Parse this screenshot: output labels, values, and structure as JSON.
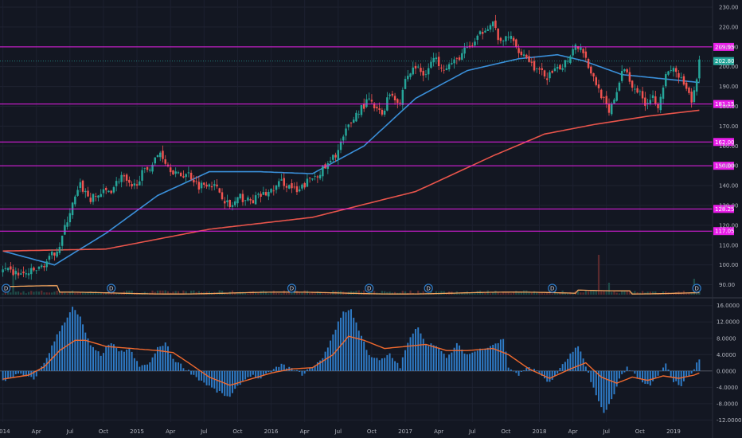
{
  "chart_data": [
    {
      "type": "candlestick",
      "title": "",
      "xlabel": "",
      "ylabel": "",
      "ylim": [
        85,
        232
      ],
      "yticks": [
        "230.00",
        "220.00",
        "210.00",
        "200.00",
        "190.00",
        "180.00",
        "170.00",
        "160.00",
        "150.00",
        "140.00",
        "130.00",
        "120.00",
        "110.00",
        "100.00",
        "90.00"
      ],
      "ytick_values": [
        230,
        220,
        210,
        200,
        190,
        180,
        170,
        160,
        150,
        140,
        130,
        120,
        110,
        100,
        90
      ],
      "x_labels": [
        "2014",
        "Apr",
        "Jul",
        "Oct",
        "2015",
        "Apr",
        "Jul",
        "Oct",
        "2016",
        "Apr",
        "Jul",
        "Oct",
        "2017",
        "Apr",
        "Jul",
        "Oct",
        "2018",
        "Apr",
        "Jul",
        "Oct",
        "2019"
      ],
      "x_label_positions": [
        0,
        13,
        26,
        39,
        52,
        65,
        78,
        91,
        104,
        117,
        130,
        143,
        156,
        169,
        182,
        195,
        208,
        221,
        234,
        247,
        260
      ],
      "n_bars": 271,
      "close_keypoints": [
        [
          0,
          97
        ],
        [
          8,
          95
        ],
        [
          14,
          98
        ],
        [
          18,
          103
        ],
        [
          22,
          110
        ],
        [
          26,
          127
        ],
        [
          30,
          140
        ],
        [
          34,
          133
        ],
        [
          38,
          136
        ],
        [
          42,
          138
        ],
        [
          46,
          145
        ],
        [
          50,
          138
        ],
        [
          54,
          146
        ],
        [
          58,
          151
        ],
        [
          61,
          157
        ],
        [
          64,
          150
        ],
        [
          68,
          145
        ],
        [
          72,
          146
        ],
        [
          76,
          140
        ],
        [
          80,
          142
        ],
        [
          84,
          137
        ],
        [
          88,
          129
        ],
        [
          92,
          134
        ],
        [
          96,
          132
        ],
        [
          100,
          135
        ],
        [
          104,
          137
        ],
        [
          108,
          142
        ],
        [
          112,
          139
        ],
        [
          114,
          136
        ],
        [
          118,
          142
        ],
        [
          122,
          146
        ],
        [
          126,
          150
        ],
        [
          130,
          158
        ],
        [
          134,
          170
        ],
        [
          138,
          178
        ],
        [
          142,
          183
        ],
        [
          144,
          179
        ],
        [
          147,
          176
        ],
        [
          150,
          187
        ],
        [
          154,
          182
        ],
        [
          156,
          194
        ],
        [
          160,
          200
        ],
        [
          163,
          196
        ],
        [
          167,
          204
        ],
        [
          171,
          200
        ],
        [
          175,
          202
        ],
        [
          179,
          208
        ],
        [
          183,
          212
        ],
        [
          187,
          220
        ],
        [
          190,
          222
        ],
        [
          193,
          211
        ],
        [
          196,
          216
        ],
        [
          199,
          210
        ],
        [
          203,
          205
        ],
        [
          207,
          198
        ],
        [
          211,
          195
        ],
        [
          215,
          198
        ],
        [
          219,
          204
        ],
        [
          222,
          212
        ],
        [
          225,
          208
        ],
        [
          228,
          197
        ],
        [
          232,
          186
        ],
        [
          235,
          176
        ],
        [
          238,
          188
        ],
        [
          241,
          200
        ],
        [
          243,
          193
        ],
        [
          246,
          188
        ],
        [
          249,
          182
        ],
        [
          252,
          185
        ],
        [
          254,
          181
        ],
        [
          257,
          195
        ],
        [
          260,
          199
        ],
        [
          263,
          193
        ],
        [
          265,
          188
        ],
        [
          267,
          182
        ],
        [
          269,
          193
        ],
        [
          270,
          205
        ]
      ],
      "bull_color": "#26a69a",
      "bear_color": "#ef5350",
      "moving_averages": [
        {
          "period": 50,
          "color": "#3a8fd9",
          "keypoints": [
            [
              0,
              107
            ],
            [
              20,
              100
            ],
            [
              40,
              116
            ],
            [
              60,
              135
            ],
            [
              80,
              147
            ],
            [
              100,
              147
            ],
            [
              120,
              146
            ],
            [
              140,
              160
            ],
            [
              160,
              184
            ],
            [
              180,
              198
            ],
            [
              200,
              204
            ],
            [
              215,
              206
            ],
            [
              225,
              203
            ],
            [
              240,
              196
            ],
            [
              255,
              194
            ],
            [
              270,
              192
            ]
          ]
        },
        {
          "period": 200,
          "color": "#e8544b",
          "keypoints": [
            [
              0,
              107
            ],
            [
              40,
              108
            ],
            [
              80,
              118
            ],
            [
              120,
              124
            ],
            [
              160,
              137
            ],
            [
              190,
              155
            ],
            [
              210,
              166
            ],
            [
              230,
              171
            ],
            [
              250,
              175
            ],
            [
              270,
              178
            ]
          ]
        }
      ],
      "price_levels": [
        {
          "value": 209.95,
          "label": "209.95"
        },
        {
          "value": 181.15,
          "label": "181.15"
        },
        {
          "value": 162.0,
          "label": "162.00"
        },
        {
          "value": 150.0,
          "label": "150.00"
        },
        {
          "value": 128.25,
          "label": "128.25"
        },
        {
          "value": 117.05,
          "label": "117.05"
        }
      ],
      "level_color": "#e91ee9",
      "current_price": {
        "value": 202.8,
        "label": "202.80",
        "color": "#26a69a"
      },
      "volume": {
        "baseline_color": "#f0a35e",
        "spike_bars": [
          [
            4,
            35
          ],
          [
            231,
            50
          ],
          [
            235,
            15
          ],
          [
            268,
            20
          ]
        ]
      },
      "dividend_markers": {
        "label": "D",
        "bars": [
          0,
          42,
          112,
          142,
          165,
          213,
          269
        ]
      }
    },
    {
      "type": "bar",
      "name": "momentum oscillator",
      "ylim": [
        -12.5,
        17.5
      ],
      "yticks": [
        "16.0000",
        "12.0000",
        "8.0000",
        "4.0000",
        "0.0000",
        "-4.0000",
        "-8.0000",
        "-12.0000"
      ],
      "ytick_values": [
        16,
        12,
        8,
        4,
        0,
        -4,
        -8,
        -12
      ],
      "bar_color": "#2f7cc8",
      "zero_line_color": "#5a5e69",
      "keypoints": [
        [
          0,
          -2.5
        ],
        [
          6,
          -0.8
        ],
        [
          12,
          -2
        ],
        [
          16,
          2
        ],
        [
          22,
          10
        ],
        [
          27,
          15.5
        ],
        [
          30,
          13
        ],
        [
          34,
          6
        ],
        [
          38,
          4
        ],
        [
          42,
          7
        ],
        [
          45,
          4.5
        ],
        [
          49,
          5.5
        ],
        [
          53,
          1
        ],
        [
          57,
          2
        ],
        [
          60,
          5.5
        ],
        [
          63,
          7
        ],
        [
          66,
          3
        ],
        [
          70,
          1
        ],
        [
          76,
          -2
        ],
        [
          83,
          -5
        ],
        [
          88,
          -6.5
        ],
        [
          92,
          -3
        ],
        [
          96,
          -1
        ],
        [
          100,
          -2
        ],
        [
          104,
          0
        ],
        [
          108,
          1.5
        ],
        [
          112,
          0.5
        ],
        [
          116,
          -0.8
        ],
        [
          120,
          1
        ],
        [
          124,
          3
        ],
        [
          128,
          9
        ],
        [
          132,
          14.5
        ],
        [
          135,
          15
        ],
        [
          138,
          10
        ],
        [
          142,
          4
        ],
        [
          146,
          2.5
        ],
        [
          150,
          4
        ],
        [
          154,
          1
        ],
        [
          157,
          7
        ],
        [
          161,
          11
        ],
        [
          164,
          6.5
        ],
        [
          168,
          6.5
        ],
        [
          172,
          3
        ],
        [
          176,
          6.5
        ],
        [
          180,
          4
        ],
        [
          184,
          5
        ],
        [
          188,
          6
        ],
        [
          192,
          7
        ],
        [
          194,
          8
        ],
        [
          196,
          1
        ],
        [
          200,
          -1
        ],
        [
          204,
          1
        ],
        [
          208,
          -0.5
        ],
        [
          212,
          -3
        ],
        [
          216,
          0.5
        ],
        [
          220,
          4
        ],
        [
          223,
          6
        ],
        [
          227,
          -0.5
        ],
        [
          230,
          -6
        ],
        [
          233,
          -10.5
        ],
        [
          236,
          -7
        ],
        [
          239,
          -2
        ],
        [
          242,
          1
        ],
        [
          245,
          -1
        ],
        [
          248,
          -3
        ],
        [
          251,
          -3.5
        ],
        [
          254,
          -1
        ],
        [
          257,
          1.5
        ],
        [
          260,
          -2.5
        ],
        [
          263,
          -3.5
        ],
        [
          266,
          -1
        ],
        [
          268,
          0.5
        ],
        [
          270,
          3
        ]
      ],
      "signal_line": {
        "color": "#f0692e",
        "keypoints": [
          [
            0,
            -2
          ],
          [
            10,
            -1
          ],
          [
            16,
            1
          ],
          [
            22,
            5
          ],
          [
            28,
            7.5
          ],
          [
            32,
            7.5
          ],
          [
            40,
            6
          ],
          [
            50,
            5.5
          ],
          [
            60,
            5
          ],
          [
            66,
            4.5
          ],
          [
            72,
            2
          ],
          [
            80,
            -1.5
          ],
          [
            88,
            -3.5
          ],
          [
            96,
            -2
          ],
          [
            104,
            -0.5
          ],
          [
            112,
            0.5
          ],
          [
            120,
            0.8
          ],
          [
            128,
            4
          ],
          [
            134,
            8.5
          ],
          [
            140,
            7.5
          ],
          [
            148,
            5.5
          ],
          [
            156,
            6
          ],
          [
            164,
            6.5
          ],
          [
            172,
            5
          ],
          [
            180,
            5
          ],
          [
            190,
            5.5
          ],
          [
            196,
            4
          ],
          [
            204,
            0.5
          ],
          [
            212,
            -1.8
          ],
          [
            220,
            0.5
          ],
          [
            226,
            2
          ],
          [
            232,
            -1.5
          ],
          [
            238,
            -3
          ],
          [
            244,
            -1.5
          ],
          [
            250,
            -2.3
          ],
          [
            256,
            -1.2
          ],
          [
            262,
            -1.8
          ],
          [
            268,
            -1
          ],
          [
            270,
            -0.5
          ]
        ]
      }
    }
  ]
}
